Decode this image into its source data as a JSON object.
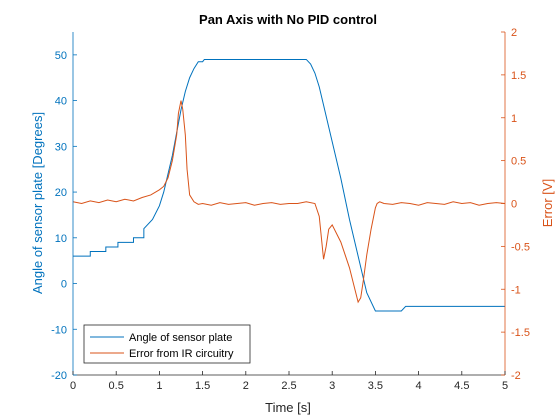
{
  "chart_data": {
    "type": "line",
    "title": "Pan Axis with No PID control",
    "xlabel": "Time [s]",
    "ylabel_left": "Angle of sensor plate [Degrees]",
    "ylabel_right": "Error [V]",
    "xlim": [
      0,
      5
    ],
    "ylim_left": [
      -20,
      55
    ],
    "ylim_right": [
      -2,
      2
    ],
    "x_ticks": [
      "0",
      "0.5",
      "1",
      "1.5",
      "2",
      "2.5",
      "3",
      "3.5",
      "4",
      "4.5",
      "5"
    ],
    "y_left_ticks": [
      "-20",
      "-10",
      "0",
      "10",
      "20",
      "30",
      "40",
      "50"
    ],
    "y_right_ticks": [
      "-2",
      "-1.5",
      "-1",
      "-0.5",
      "0",
      "0.5",
      "1",
      "1.5",
      "2"
    ],
    "grid": false,
    "legend_position": "bottom-left",
    "colors": {
      "angle": "#0072BD",
      "error": "#D95319",
      "axes": "#262626"
    },
    "series": [
      {
        "name": "Angle of sensor plate",
        "axis": "left",
        "x": [
          0,
          0.2,
          0.2,
          0.38,
          0.38,
          0.52,
          0.52,
          0.7,
          0.7,
          0.82,
          0.82,
          0.92,
          1.0,
          1.05,
          1.1,
          1.15,
          1.2,
          1.25,
          1.3,
          1.35,
          1.4,
          1.45,
          1.5,
          1.52,
          1.55,
          1.6,
          2.7,
          2.75,
          2.8,
          2.85,
          2.9,
          3.0,
          3.1,
          3.2,
          3.3,
          3.4,
          3.5,
          3.55,
          3.8,
          3.85,
          5.0
        ],
        "values": [
          6,
          6,
          7,
          7,
          8,
          8,
          9,
          9,
          10,
          10,
          12,
          14,
          17,
          20,
          24,
          28,
          33,
          38,
          42,
          45,
          47,
          48.5,
          48.5,
          49,
          49,
          49,
          49,
          48,
          46,
          43,
          39,
          31,
          23,
          14,
          6,
          -2,
          -6,
          -6,
          -6,
          -5,
          -5
        ]
      },
      {
        "name": "Error from IR circuitry",
        "axis": "right",
        "x": [
          0,
          0.1,
          0.2,
          0.3,
          0.4,
          0.5,
          0.6,
          0.7,
          0.8,
          0.9,
          1.0,
          1.05,
          1.1,
          1.15,
          1.2,
          1.22,
          1.25,
          1.27,
          1.3,
          1.32,
          1.35,
          1.4,
          1.45,
          1.5,
          1.6,
          1.7,
          1.8,
          1.9,
          2.0,
          2.1,
          2.2,
          2.3,
          2.4,
          2.5,
          2.6,
          2.7,
          2.8,
          2.85,
          2.88,
          2.9,
          2.93,
          2.96,
          3.0,
          3.05,
          3.1,
          3.15,
          3.2,
          3.25,
          3.3,
          3.33,
          3.36,
          3.4,
          3.45,
          3.5,
          3.52,
          3.55,
          3.6,
          3.7,
          3.8,
          3.9,
          4.0,
          4.1,
          4.2,
          4.3,
          4.4,
          4.5,
          4.6,
          4.7,
          4.8,
          4.9,
          5.0
        ],
        "values": [
          0.02,
          0.0,
          0.03,
          0.01,
          0.04,
          0.02,
          0.05,
          0.03,
          0.07,
          0.1,
          0.16,
          0.2,
          0.3,
          0.5,
          0.8,
          1.05,
          1.2,
          1.1,
          0.8,
          0.4,
          0.1,
          0.02,
          -0.01,
          0.0,
          -0.02,
          0.01,
          -0.01,
          0.0,
          0.01,
          -0.02,
          0.0,
          0.01,
          -0.01,
          0.0,
          0.0,
          0.02,
          0.0,
          -0.15,
          -0.45,
          -0.65,
          -0.5,
          -0.3,
          -0.25,
          -0.35,
          -0.45,
          -0.6,
          -0.75,
          -0.95,
          -1.15,
          -1.1,
          -0.9,
          -0.6,
          -0.3,
          -0.05,
          0.0,
          0.02,
          0.0,
          -0.01,
          0.01,
          0.0,
          -0.02,
          0.01,
          0.0,
          -0.01,
          0.02,
          0.0,
          0.01,
          -0.02,
          0.0,
          0.01,
          0.0
        ]
      }
    ]
  }
}
